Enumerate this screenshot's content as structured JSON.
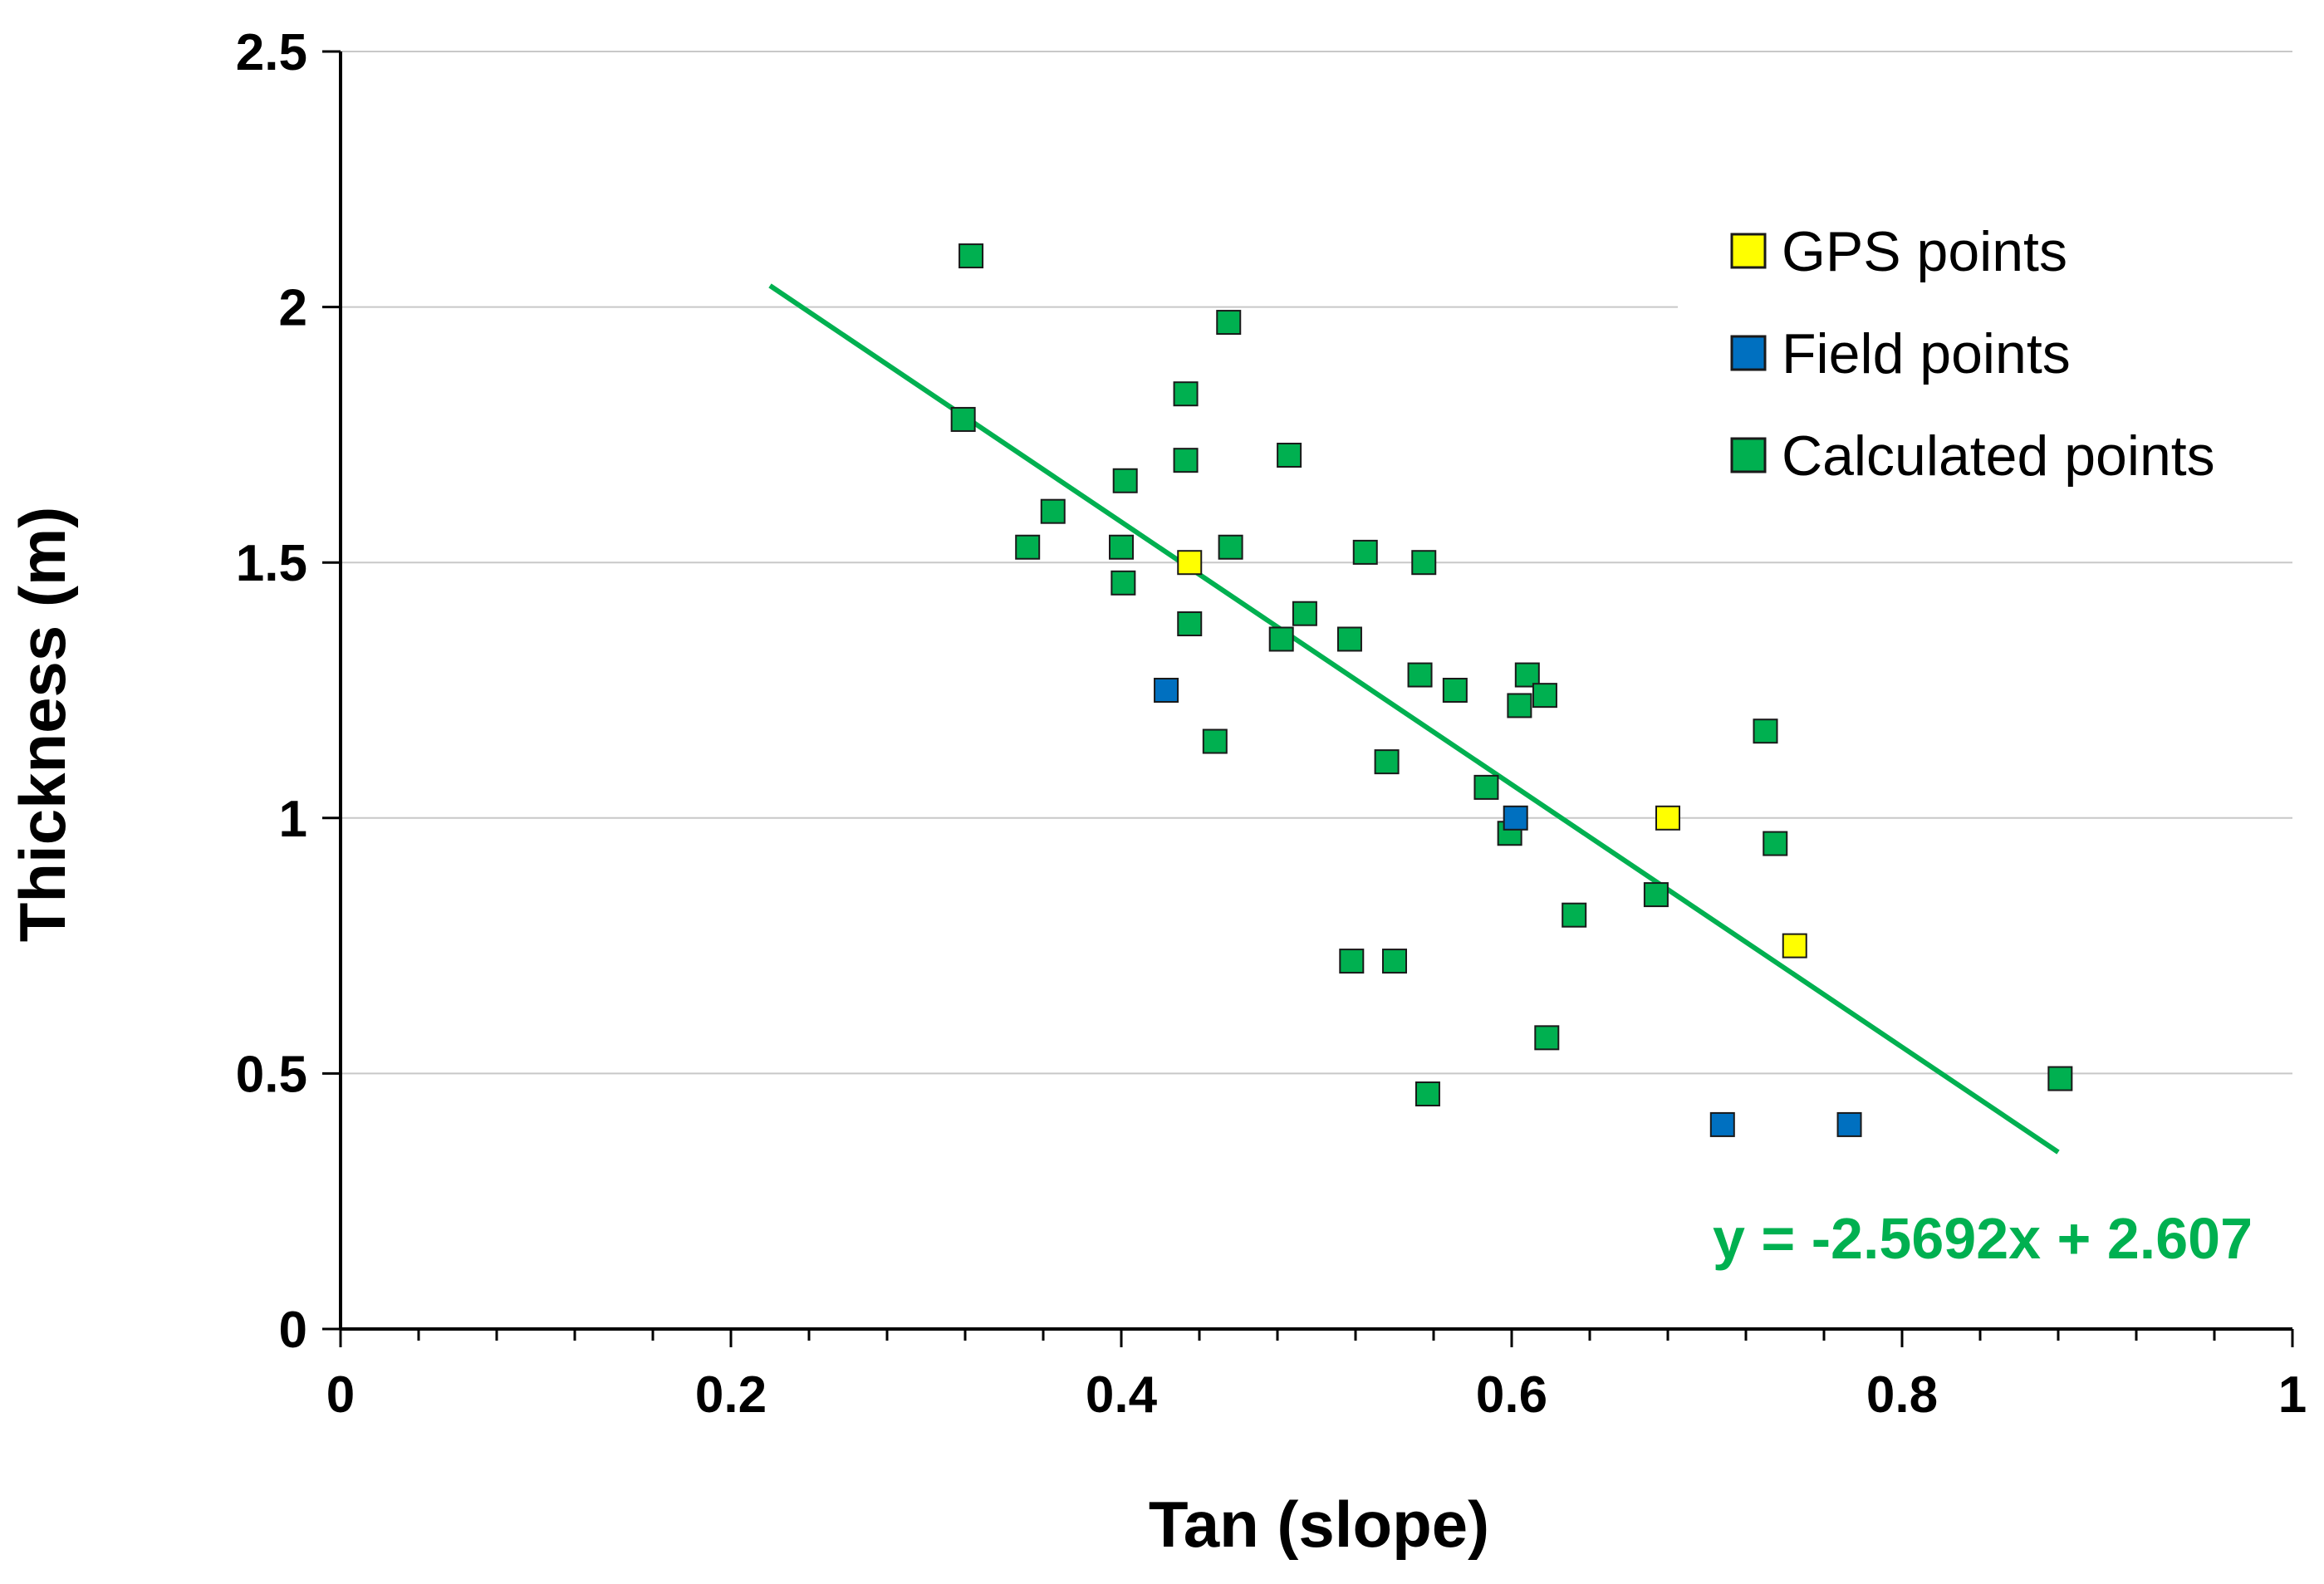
{
  "chart_data": {
    "type": "scatter",
    "xlabel": "Tan (slope)",
    "ylabel": "Thickness (m)",
    "xlim": [
      0,
      1
    ],
    "ylim": [
      0,
      2.5
    ],
    "x_ticks": [
      "0",
      "0.2",
      "0.4",
      "0.6",
      "0.8",
      "1"
    ],
    "y_ticks": [
      "0",
      "0.5",
      "1",
      "1.5",
      "2",
      "2.5"
    ],
    "grid": "horizontal",
    "legend_position": "top-right",
    "series": [
      {
        "name": "GPS points",
        "color": "#ffff00",
        "marker": "square",
        "points": [
          {
            "x": 0.435,
            "y": 1.5
          },
          {
            "x": 0.68,
            "y": 1.0
          },
          {
            "x": 0.745,
            "y": 0.75
          }
        ]
      },
      {
        "name": "Field points",
        "color": "#0070c0",
        "marker": "square",
        "points": [
          {
            "x": 0.423,
            "y": 1.25
          },
          {
            "x": 0.602,
            "y": 1.0
          },
          {
            "x": 0.708,
            "y": 0.4
          },
          {
            "x": 0.773,
            "y": 0.4
          }
        ]
      },
      {
        "name": "Calculated points",
        "color": "#00b050",
        "marker": "square",
        "points": [
          {
            "x": 0.323,
            "y": 2.1
          },
          {
            "x": 0.455,
            "y": 1.97
          },
          {
            "x": 0.433,
            "y": 1.83
          },
          {
            "x": 0.319,
            "y": 1.78
          },
          {
            "x": 0.486,
            "y": 1.71
          },
          {
            "x": 0.433,
            "y": 1.7
          },
          {
            "x": 0.402,
            "y": 1.66
          },
          {
            "x": 0.365,
            "y": 1.6
          },
          {
            "x": 0.352,
            "y": 1.53
          },
          {
            "x": 0.4,
            "y": 1.53
          },
          {
            "x": 0.456,
            "y": 1.53
          },
          {
            "x": 0.525,
            "y": 1.52
          },
          {
            "x": 0.555,
            "y": 1.5
          },
          {
            "x": 0.401,
            "y": 1.46
          },
          {
            "x": 0.494,
            "y": 1.4
          },
          {
            "x": 0.435,
            "y": 1.38
          },
          {
            "x": 0.482,
            "y": 1.35
          },
          {
            "x": 0.517,
            "y": 1.35
          },
          {
            "x": 0.553,
            "y": 1.28
          },
          {
            "x": 0.608,
            "y": 1.28
          },
          {
            "x": 0.571,
            "y": 1.25
          },
          {
            "x": 0.617,
            "y": 1.24
          },
          {
            "x": 0.604,
            "y": 1.22
          },
          {
            "x": 0.448,
            "y": 1.15
          },
          {
            "x": 0.73,
            "y": 1.17
          },
          {
            "x": 0.536,
            "y": 1.11
          },
          {
            "x": 0.587,
            "y": 1.06
          },
          {
            "x": 0.599,
            "y": 0.97
          },
          {
            "x": 0.735,
            "y": 0.95
          },
          {
            "x": 0.674,
            "y": 0.85
          },
          {
            "x": 0.632,
            "y": 0.81
          },
          {
            "x": 0.518,
            "y": 0.72
          },
          {
            "x": 0.54,
            "y": 0.72
          },
          {
            "x": 0.618,
            "y": 0.57
          },
          {
            "x": 0.557,
            "y": 0.46
          },
          {
            "x": 0.881,
            "y": 0.49
          }
        ]
      }
    ],
    "trendline": {
      "slope": -2.5692,
      "intercept": 2.607,
      "x_range": [
        0.22,
        0.88
      ],
      "color": "#00b050",
      "label": "y = -2.5692x + 2.607"
    }
  }
}
